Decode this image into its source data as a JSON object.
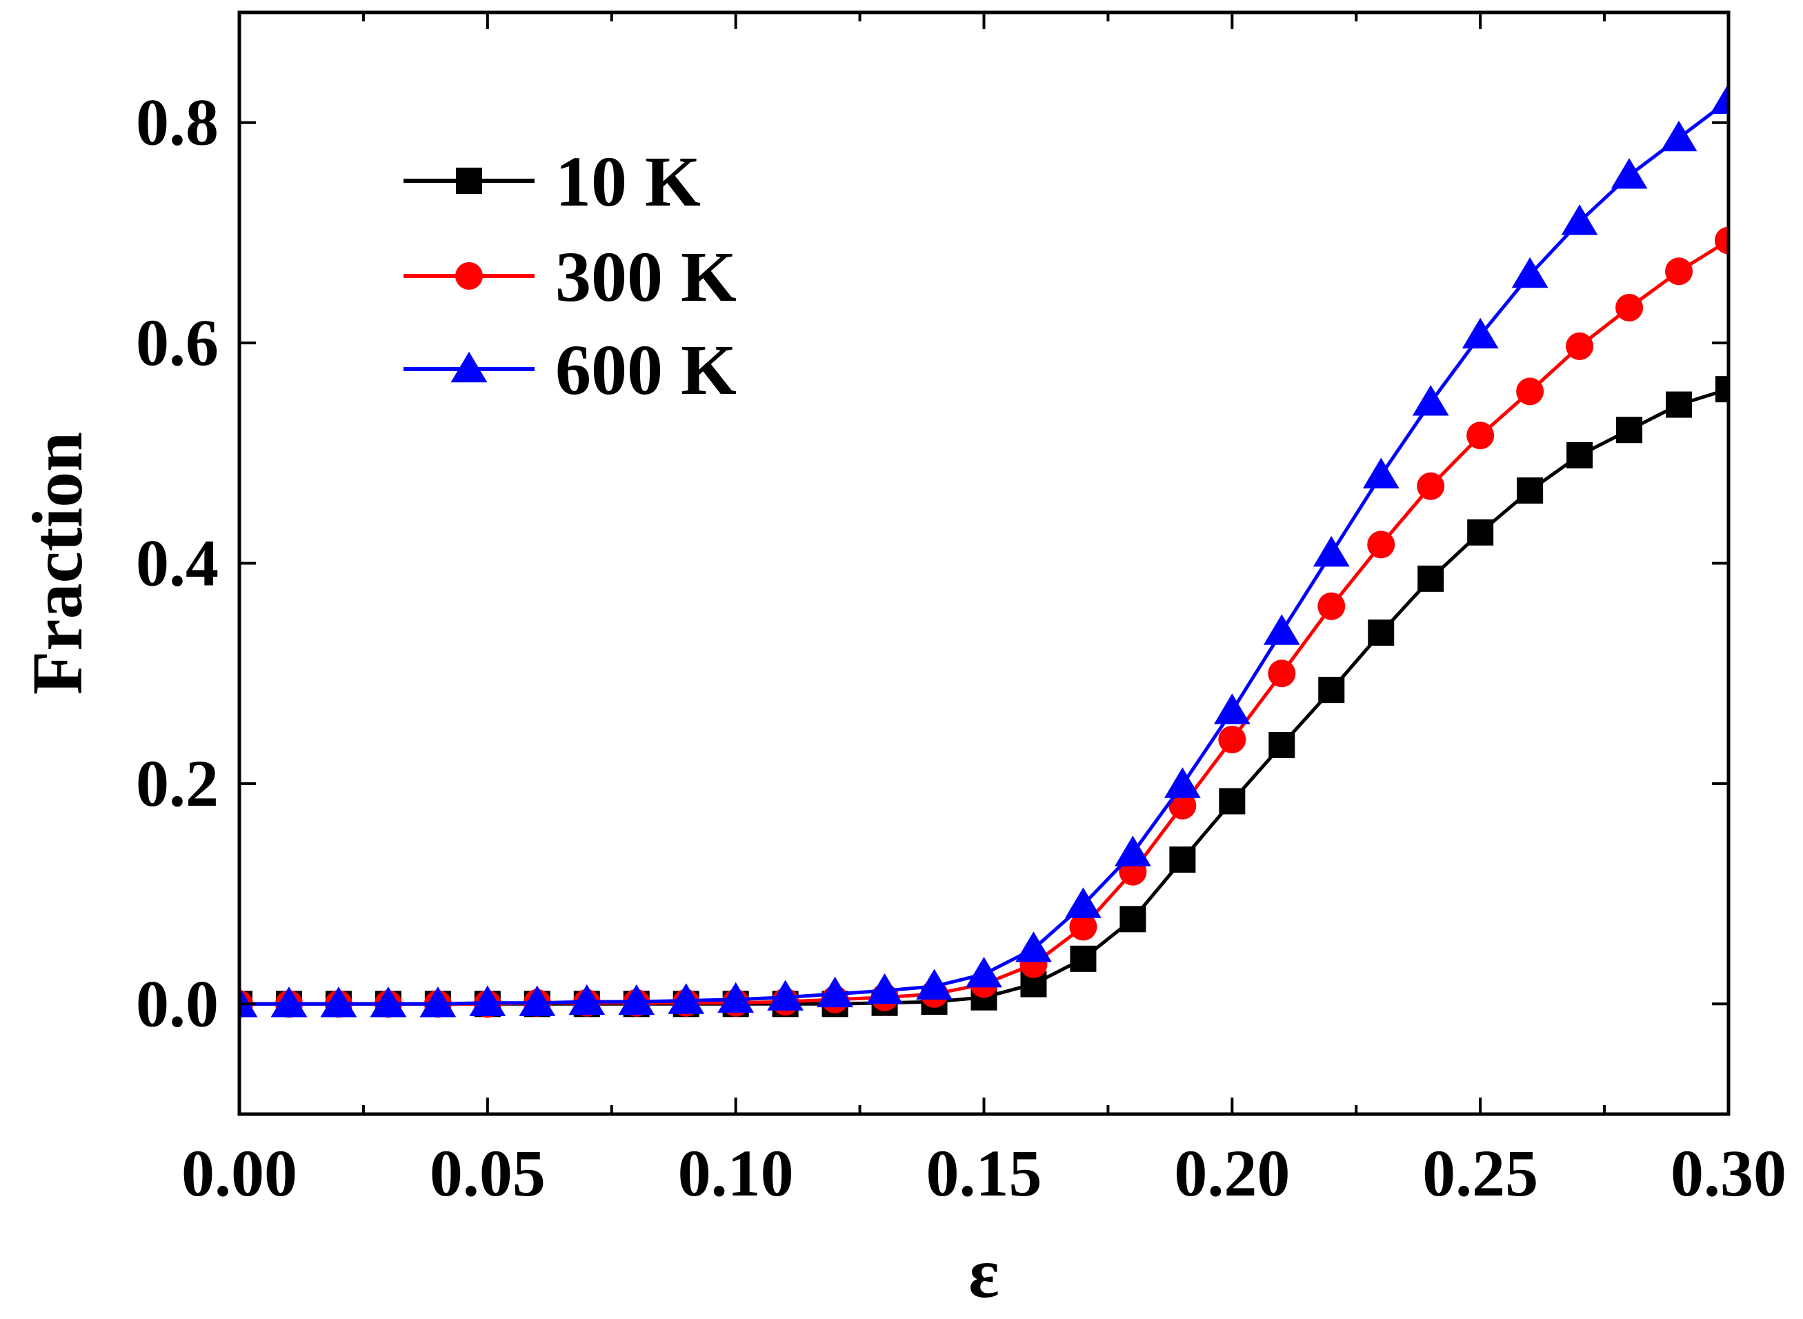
{
  "chart_data": {
    "type": "line",
    "title": "",
    "xlabel": "ε",
    "ylabel": "Fraction",
    "xlim": [
      0.0,
      0.3
    ],
    "ylim": [
      -0.1,
      0.9
    ],
    "xticks": [
      0.0,
      0.05,
      0.1,
      0.15,
      0.2,
      0.25,
      0.3
    ],
    "xtick_labels": [
      "0.00",
      "0.05",
      "0.10",
      "0.15",
      "0.20",
      "0.25",
      "0.30"
    ],
    "yticks": [
      0.0,
      0.2,
      0.4,
      0.6,
      0.8
    ],
    "ytick_labels": [
      "0.0",
      "0.2",
      "0.4",
      "0.6",
      "0.8"
    ],
    "grid": false,
    "legend_position": "top-left",
    "x": [
      0.0,
      0.01,
      0.02,
      0.03,
      0.04,
      0.05,
      0.06,
      0.07,
      0.08,
      0.09,
      0.1,
      0.11,
      0.12,
      0.13,
      0.14,
      0.15,
      0.16,
      0.17,
      0.18,
      0.19,
      0.2,
      0.21,
      0.22,
      0.23,
      0.24,
      0.25,
      0.26,
      0.27,
      0.28,
      0.29,
      0.3
    ],
    "series": [
      {
        "name": "10 K",
        "color": "#000000",
        "marker": "square",
        "values": [
          0.0,
          0.0,
          0.0,
          0.0,
          0.0,
          0.0,
          0.0,
          0.0,
          0.0,
          0.0,
          0.0,
          0.0,
          0.0,
          0.001,
          0.002,
          0.006,
          0.018,
          0.041,
          0.077,
          0.131,
          0.184,
          0.235,
          0.285,
          0.337,
          0.386,
          0.428,
          0.466,
          0.498,
          0.521,
          0.544,
          0.558
        ]
      },
      {
        "name": "300 K",
        "color": "#ff0000",
        "marker": "circle",
        "values": [
          0.0,
          0.0,
          0.0,
          0.0,
          0.0,
          0.0,
          0.001,
          0.001,
          0.001,
          0.001,
          0.001,
          0.002,
          0.004,
          0.006,
          0.009,
          0.018,
          0.036,
          0.07,
          0.12,
          0.18,
          0.24,
          0.3,
          0.361,
          0.417,
          0.47,
          0.516,
          0.556,
          0.597,
          0.632,
          0.665,
          0.693
        ]
      },
      {
        "name": "600 K",
        "color": "#0000ff",
        "marker": "triangle",
        "values": [
          0.0,
          0.0,
          0.0,
          0.0,
          0.0,
          0.001,
          0.001,
          0.002,
          0.002,
          0.003,
          0.004,
          0.006,
          0.009,
          0.012,
          0.016,
          0.027,
          0.05,
          0.09,
          0.137,
          0.199,
          0.266,
          0.338,
          0.409,
          0.48,
          0.546,
          0.607,
          0.662,
          0.71,
          0.752,
          0.786,
          0.82
        ]
      }
    ]
  }
}
